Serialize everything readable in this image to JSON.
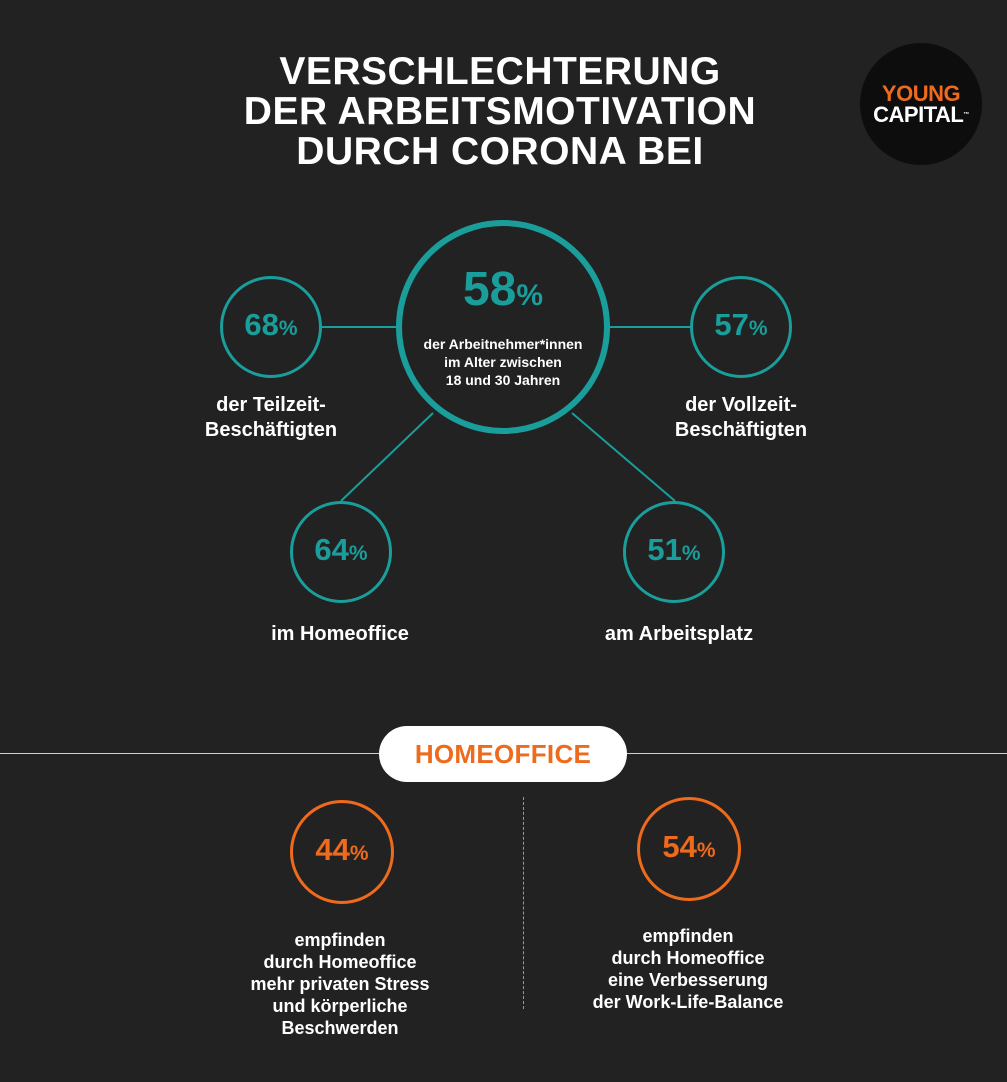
{
  "title": {
    "line1": "VERSCHLECHTERUNG",
    "line2": "DER ARBEITSMOTIVATION",
    "line3": "DURCH CORONA BEI"
  },
  "logo": {
    "line1": "YOUNG",
    "line2": "CAPITAL",
    "trademark": "™",
    "colors": {
      "young": "#ee6a1c",
      "capital": "#ffffff",
      "background": "#0d0d0d"
    }
  },
  "colors": {
    "teal": "#1a9e9c",
    "orange": "#ee6a1c",
    "background": "#222222"
  },
  "percent_sign": "%",
  "center": {
    "value": "58",
    "description_line1": "der Arbeitnehmer*innen",
    "description_line2": "im Alter zwischen",
    "description_line3": "18 und 30 Jahren"
  },
  "stats": {
    "teilzeit": {
      "value": "68",
      "label_line1": "der Teilzeit-",
      "label_line2": "Beschäftigten"
    },
    "vollzeit": {
      "value": "57",
      "label_line1": "der Vollzeit-",
      "label_line2": "Beschäftigten"
    },
    "homeoffice": {
      "value": "64",
      "label": "im Homeoffice"
    },
    "arbeitsplatz": {
      "value": "51",
      "label": "am Arbeitsplatz"
    }
  },
  "section": {
    "title": "HOMEOFFICE"
  },
  "homeoffice_stats": {
    "stress": {
      "value": "44",
      "lines": [
        "empfinden",
        "durch Homeoffice",
        "mehr privaten Stress",
        "und körperliche",
        "Beschwerden"
      ]
    },
    "balance": {
      "value": "54",
      "lines": [
        "empfinden",
        "durch Homeoffice",
        "eine Verbesserung",
        "der Work-Life-Balance"
      ]
    }
  }
}
